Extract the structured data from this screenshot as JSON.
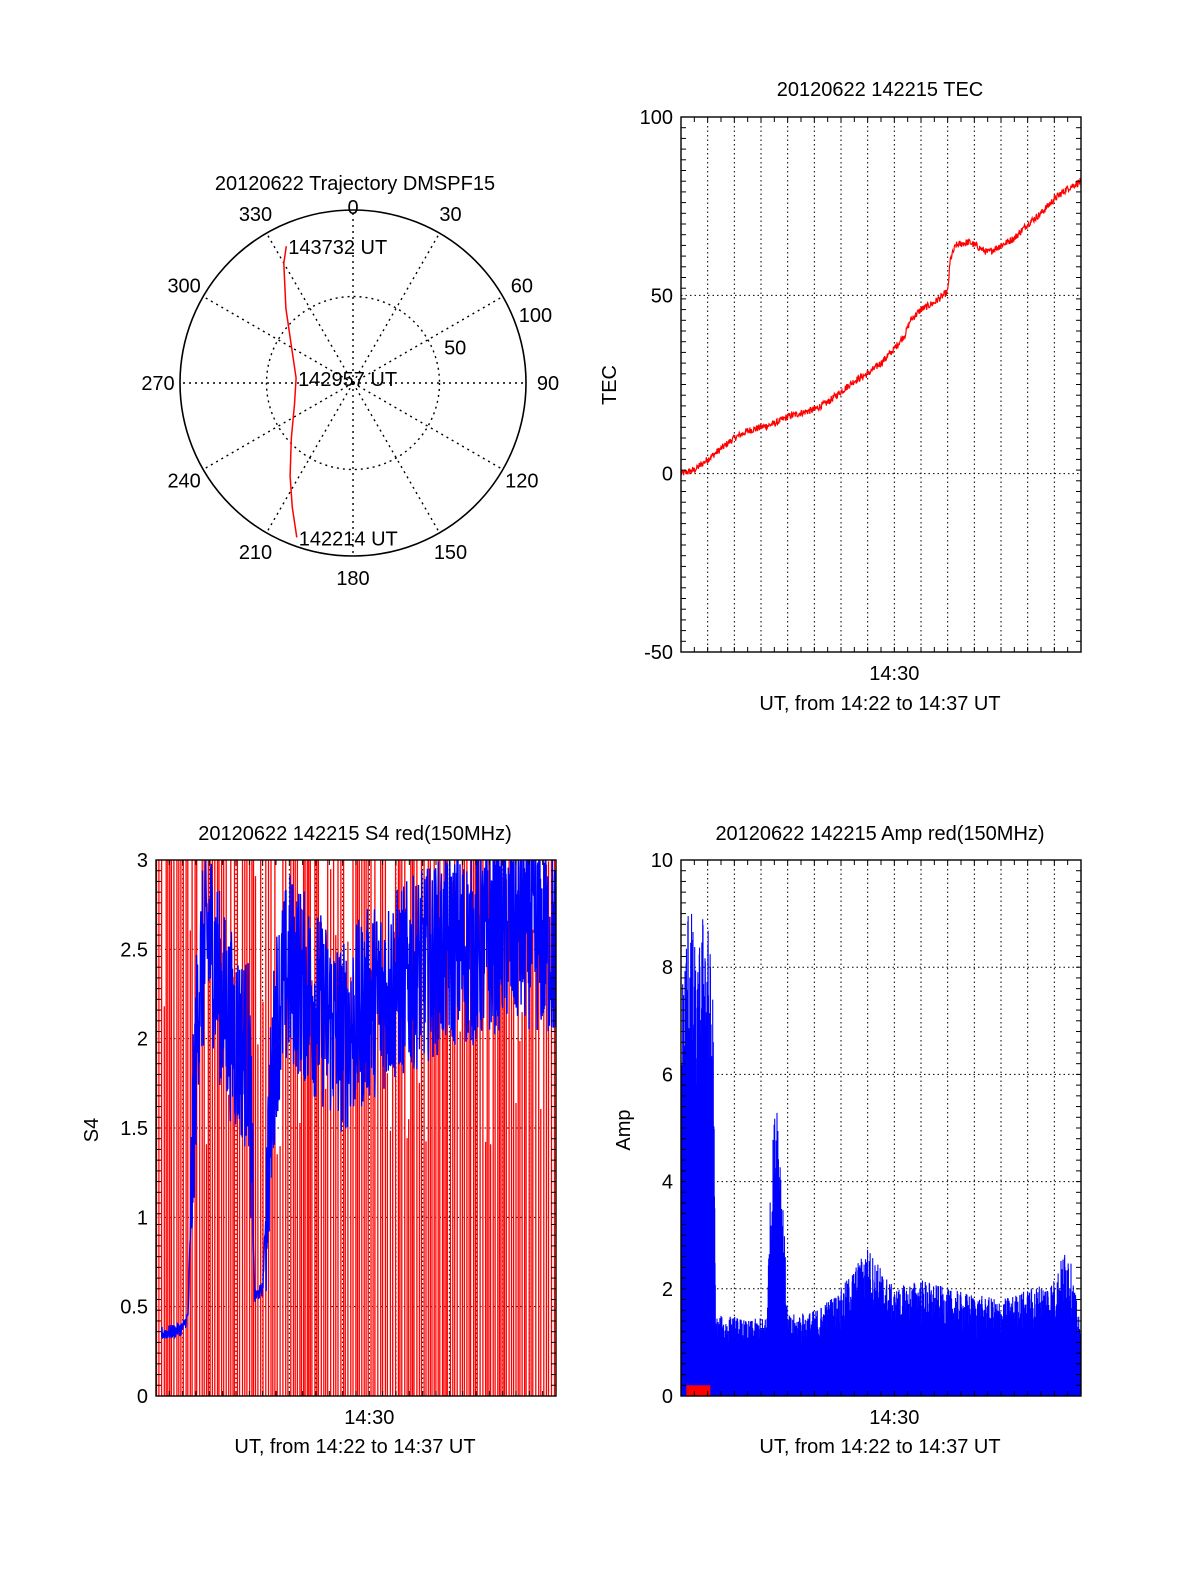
{
  "colors": {
    "red": "#ff0000",
    "blue": "#0000ff",
    "axis": "#000000",
    "grid": "#000000",
    "background": "#ffffff"
  },
  "chart_data": [
    {
      "type": "polar",
      "title": "20120622 Trajectory DMSPF15",
      "angle_labels": [
        "0",
        "30",
        "60",
        "90",
        "120",
        "150",
        "180",
        "210",
        "240",
        "270",
        "300",
        "330"
      ],
      "radial_labels": [
        "50",
        "100"
      ],
      "radial_ticks": [
        50,
        100
      ],
      "rmax": 100,
      "grid": true,
      "series": [
        {
          "color": "#ff0000",
          "points": [
            {
              "az": 200,
              "r": 95
            },
            {
              "az": 206,
              "r": 80
            },
            {
              "az": 214,
              "r": 65
            },
            {
              "az": 228,
              "r": 48
            },
            {
              "az": 250,
              "r": 36
            },
            {
              "az": 275,
              "r": 33
            },
            {
              "az": 300,
              "r": 41
            },
            {
              "az": 318,
              "r": 58
            },
            {
              "az": 330,
              "r": 80
            },
            {
              "az": 334,
              "r": 88
            }
          ]
        }
      ],
      "annotations": [
        {
          "text": "143732 UT",
          "az": 334,
          "r": 88
        },
        {
          "text": "142957 UT",
          "az": 275,
          "r": 33
        },
        {
          "text": "142214 UT",
          "az": 200,
          "r": 95
        }
      ]
    },
    {
      "type": "line",
      "title": "20120622 142215 TEC",
      "ylabel": "TEC",
      "xlabel": "UT, from 14:22 to 14:37 UT",
      "xlim_minutes": [
        0,
        15
      ],
      "xticks": [
        {
          "minute": 8,
          "label": "14:30"
        }
      ],
      "ylim": [
        -50,
        100
      ],
      "yticks": [
        -50,
        0,
        50,
        100
      ],
      "grid": true,
      "series": [
        {
          "color": "#ff0000",
          "noise": 0.5,
          "points": [
            [
              0,
              0
            ],
            [
              0.5,
              1
            ],
            [
              1,
              4
            ],
            [
              1.5,
              7
            ],
            [
              2,
              10
            ],
            [
              2.5,
              12
            ],
            [
              3,
              13
            ],
            [
              3.5,
              14
            ],
            [
              4,
              16
            ],
            [
              4.5,
              17
            ],
            [
              5,
              18
            ],
            [
              5.5,
              20
            ],
            [
              6,
              23
            ],
            [
              6.5,
              26
            ],
            [
              7,
              28
            ],
            [
              7.5,
              31
            ],
            [
              8,
              35
            ],
            [
              8.4,
              39
            ],
            [
              8.6,
              43
            ],
            [
              9,
              46
            ],
            [
              9.5,
              48
            ],
            [
              10,
              51
            ],
            [
              10.1,
              60
            ],
            [
              10.3,
              64
            ],
            [
              10.8,
              65
            ],
            [
              11.5,
              62
            ],
            [
              12,
              64
            ],
            [
              12.5,
              66
            ],
            [
              13,
              70
            ],
            [
              13.5,
              73
            ],
            [
              14,
              77
            ],
            [
              14.5,
              80
            ],
            [
              15,
              82
            ]
          ]
        }
      ]
    },
    {
      "type": "line",
      "title": "20120622 142215 S4 red(150MHz)",
      "ylabel": "S4",
      "xlabel": "UT, from 14:22 to 14:37 UT",
      "xlim_minutes": [
        0,
        15
      ],
      "xticks": [
        {
          "minute": 8,
          "label": "14:30"
        }
      ],
      "ylim": [
        0,
        3
      ],
      "yticks": [
        0,
        0.5,
        1,
        1.5,
        2,
        2.5,
        3
      ],
      "ytick_labels": [
        "0",
        "0.5",
        "1",
        "1.5",
        "2",
        "2.5",
        "3"
      ],
      "grid": true,
      "series": [
        {
          "color": "#ff0000",
          "style": "spikes",
          "low": 0,
          "high": 3
        },
        {
          "color": "#0000ff",
          "points": [
            [
              0.2,
              0.35
            ],
            [
              0.6,
              0.36
            ],
            [
              1.0,
              0.38
            ],
            [
              1.2,
              0.45
            ],
            [
              1.4,
              1.5
            ],
            [
              1.6,
              2.3
            ],
            [
              2.0,
              2.6
            ],
            [
              2.5,
              2.2
            ],
            [
              3.0,
              2.0
            ],
            [
              3.5,
              1.9
            ],
            [
              3.7,
              0.55
            ],
            [
              4.0,
              0.6
            ],
            [
              4.2,
              1.3
            ],
            [
              4.5,
              2.1
            ],
            [
              5.0,
              2.4
            ],
            [
              6.0,
              2.2
            ],
            [
              7.0,
              2.0
            ],
            [
              8.0,
              2.2
            ],
            [
              9.0,
              2.3
            ],
            [
              10.0,
              2.4
            ],
            [
              11.0,
              2.5
            ],
            [
              12.0,
              2.5
            ],
            [
              13.0,
              2.6
            ],
            [
              14.0,
              2.6
            ],
            [
              15.0,
              2.5
            ]
          ]
        }
      ]
    },
    {
      "type": "line",
      "title": "20120622 142215 Amp red(150MHz)",
      "ylabel": "Amp",
      "xlabel": "UT, from 14:22 to 14:37 UT",
      "xlim_minutes": [
        0,
        15
      ],
      "xticks": [
        {
          "minute": 8,
          "label": "14:30"
        }
      ],
      "ylim": [
        0,
        10
      ],
      "yticks": [
        0,
        2,
        4,
        6,
        8,
        10
      ],
      "grid": true,
      "series": [
        {
          "color": "#0000ff",
          "style": "envelope",
          "points": [
            [
              0,
              7.5
            ],
            [
              0.3,
              9.6
            ],
            [
              0.6,
              8.0
            ],
            [
              0.9,
              9.5
            ],
            [
              1.2,
              7.8
            ],
            [
              1.3,
              1.5
            ],
            [
              2.0,
              1.5
            ],
            [
              2.5,
              1.4
            ],
            [
              3.2,
              1.5
            ],
            [
              3.4,
              4.5
            ],
            [
              3.6,
              6.0
            ],
            [
              3.8,
              4.0
            ],
            [
              4.0,
              1.5
            ],
            [
              5.0,
              1.6
            ],
            [
              6.0,
              2.0
            ],
            [
              6.5,
              2.4
            ],
            [
              7.0,
              2.8
            ],
            [
              8.0,
              2.0
            ],
            [
              9.0,
              2.2
            ],
            [
              10.0,
              2.0
            ],
            [
              11.0,
              1.9
            ],
            [
              12.0,
              1.8
            ],
            [
              13.0,
              2.0
            ],
            [
              14.0,
              2.2
            ],
            [
              14.5,
              2.9
            ],
            [
              15.0,
              1.2
            ]
          ]
        },
        {
          "color": "#ff0000",
          "style": "baseline",
          "points": [
            [
              0.2,
              0.2
            ],
            [
              1.1,
              0.2
            ]
          ]
        }
      ]
    }
  ]
}
